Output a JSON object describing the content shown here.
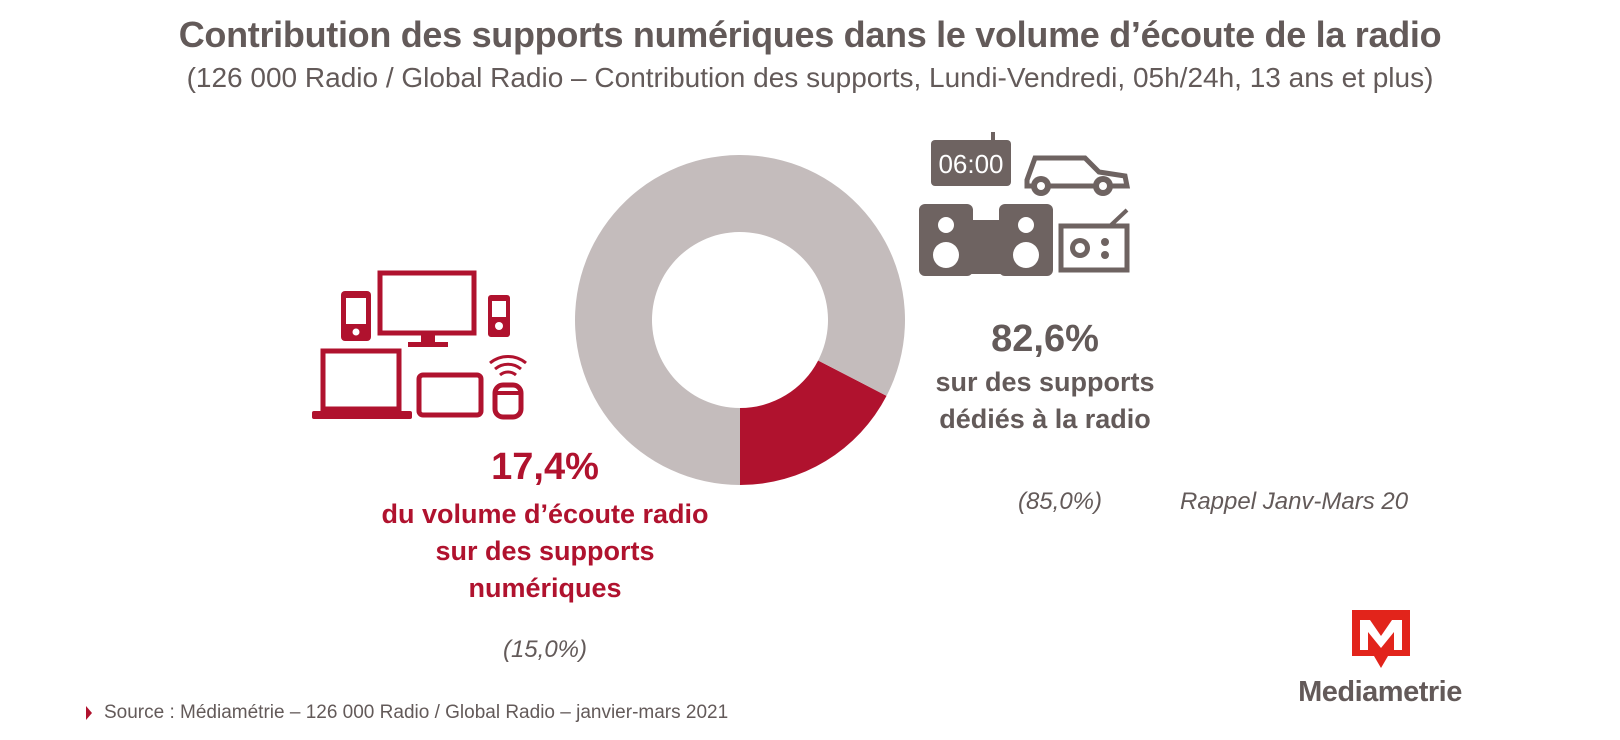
{
  "title": "Contribution des supports numériques dans le volume d’écoute de la radio",
  "subtitle": "(126 000 Radio / Global Radio – Contribution des supports, Lundi-Vendredi, 05h/24h, 13 ans et plus)",
  "colors": {
    "digital": "#b0122e",
    "dedicated": "#c4bcbc",
    "text": "#635a59",
    "icon_gray": "#6e6361"
  },
  "chart_data": {
    "type": "pie",
    "variant": "donut",
    "title": "Contribution des supports numériques dans le volume d’écoute de la radio",
    "slices": [
      {
        "label": "supports numériques",
        "value": 17.4,
        "previous": 15.0
      },
      {
        "label": "supports dédiés à la radio",
        "value": 82.6,
        "previous": 85.0
      }
    ]
  },
  "digital": {
    "pct": "17,4%",
    "desc_lines": [
      "du volume d’écoute radio",
      "sur des supports",
      "numériques"
    ],
    "previous": "(15,0%)",
    "icon": "devices-icon"
  },
  "dedicated": {
    "pct": "82,6%",
    "desc_lines": [
      "sur des supports",
      "dédiés à la radio"
    ],
    "previous": "(85,0%)",
    "icon": "radio-devices-icon"
  },
  "clock_text": "06:00",
  "reminder": "Rappel Janv-Mars 20",
  "source": "Source : Médiamétrie – 126 000 Radio / Global Radio – janvier-mars 2021",
  "logo": {
    "text": "Mediametrie",
    "letter": "M"
  }
}
